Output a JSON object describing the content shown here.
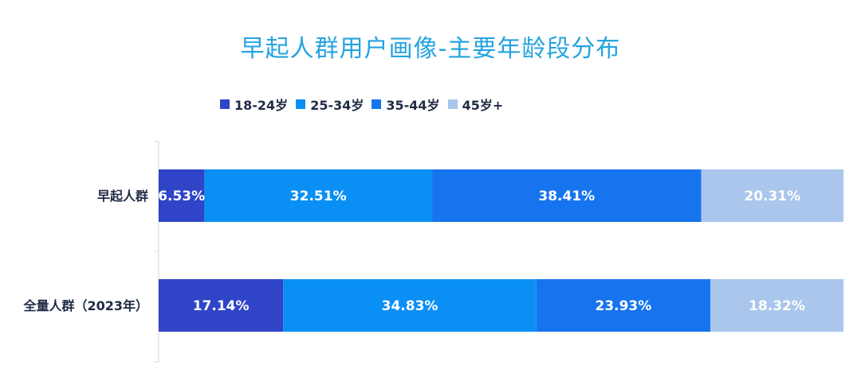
{
  "chart_data": {
    "type": "bar",
    "orientation": "horizontal",
    "stacked": true,
    "title": "早起人群用户画像-主要年龄段分布",
    "categories": [
      "早起人群",
      "全量人群（2023年）"
    ],
    "series": [
      {
        "name": "18-24岁",
        "color": "#2f44c7",
        "values": [
          6.53,
          17.14
        ],
        "labels": [
          "6.53%",
          "17.14%"
        ]
      },
      {
        "name": "25-34岁",
        "color": "#0a8ff5",
        "values": [
          32.51,
          34.83
        ],
        "labels": [
          "32.51%",
          "34.83%"
        ]
      },
      {
        "name": "35-44岁",
        "color": "#1774ef",
        "values": [
          38.41,
          23.93
        ],
        "labels": [
          "38.41%",
          "23.93%"
        ]
      },
      {
        "name": "45岁+",
        "color": "#aac6ec",
        "values": [
          20.31,
          18.32
        ],
        "labels": [
          "20.31%",
          "18.32%"
        ]
      }
    ],
    "legend_position": "top",
    "grid": false
  }
}
